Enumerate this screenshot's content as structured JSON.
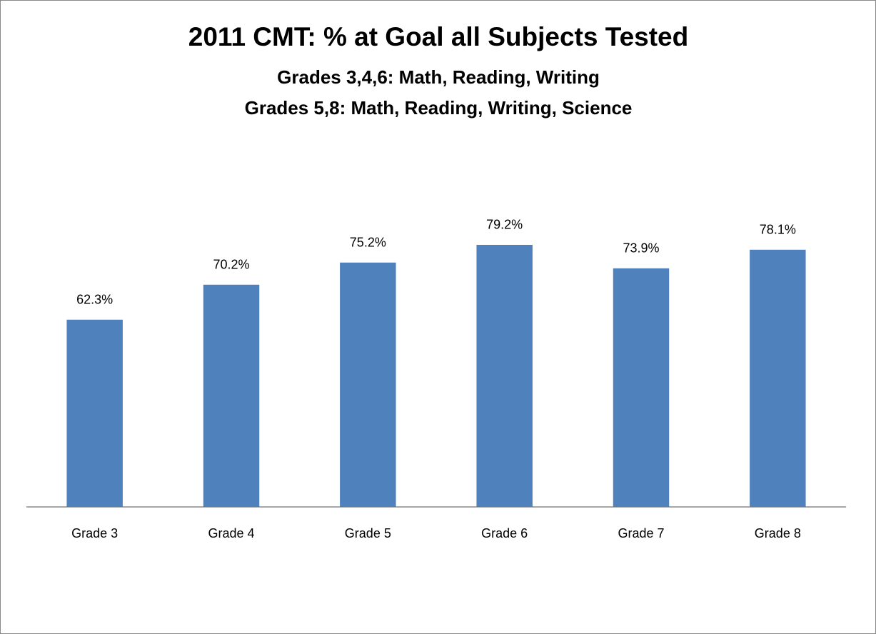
{
  "chart_data": {
    "type": "bar",
    "title": "2011 CMT: % at Goal all Subjects Tested",
    "subtitle": [
      "Grades 3,4,6: Math, Reading, Writing",
      "Grades 5,8: Math, Reading, Writing, Science"
    ],
    "categories": [
      "Grade 3",
      "Grade 4",
      "Grade 5",
      "Grade 6",
      "Grade 7",
      "Grade 8"
    ],
    "values": [
      62.3,
      70.2,
      75.2,
      79.2,
      73.9,
      78.1
    ],
    "value_labels": [
      "62.3%",
      "70.2%",
      "75.2%",
      "79.2%",
      "73.9%",
      "78.1%"
    ],
    "color": "#4f81bd",
    "ylim": [
      20,
      85
    ],
    "grid": false
  }
}
